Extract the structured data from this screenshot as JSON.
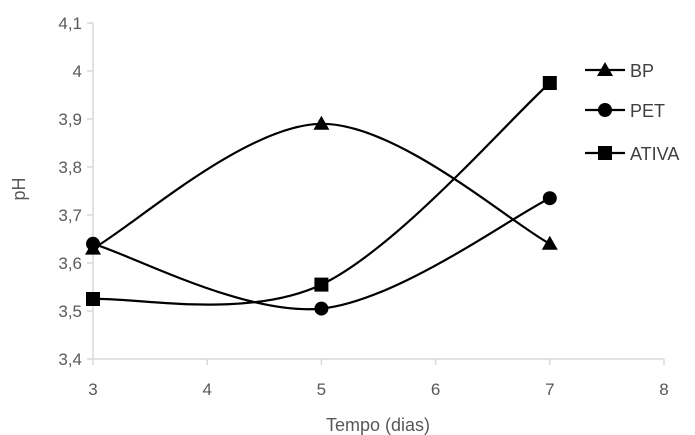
{
  "chart_data": {
    "type": "line",
    "xlabel": "Tempo (dias)",
    "ylabel": "pH",
    "xlim": [
      3,
      8
    ],
    "ylim": [
      3.4,
      4.1
    ],
    "x_ticks": [
      "3",
      "4",
      "5",
      "6",
      "7",
      "8"
    ],
    "y_ticks": [
      "3,4",
      "3,5",
      "3,6",
      "3,7",
      "3,8",
      "3,9",
      "4",
      "4,1"
    ],
    "grid": false,
    "smooth": true,
    "legend_position": "right",
    "series": [
      {
        "name": "BP",
        "marker": "triangle",
        "x": [
          3,
          5,
          7
        ],
        "y": [
          3.63,
          3.89,
          3.64
        ]
      },
      {
        "name": "PET",
        "marker": "circle",
        "x": [
          3,
          5,
          7
        ],
        "y": [
          3.64,
          3.505,
          3.735
        ]
      },
      {
        "name": "ATIVA",
        "marker": "square",
        "x": [
          3,
          5,
          7
        ],
        "y": [
          3.525,
          3.555,
          3.975
        ]
      }
    ]
  },
  "colors": {
    "series": "#000000",
    "axis": "#d9d9d9",
    "text": "#595959"
  }
}
